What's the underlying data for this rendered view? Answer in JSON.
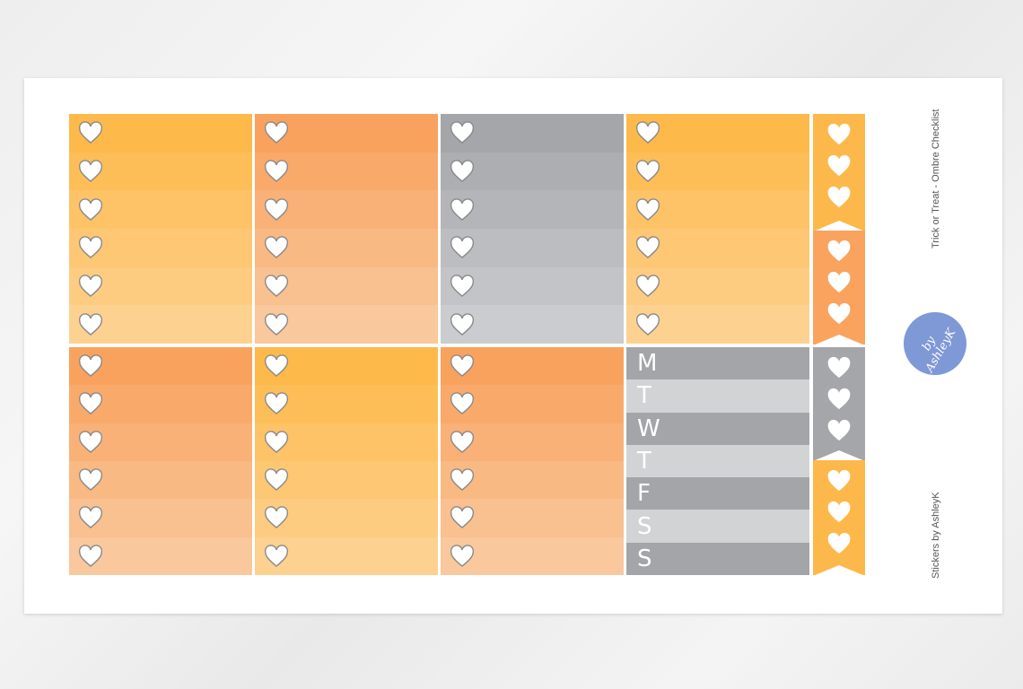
{
  "sheet": {
    "title": "Trick or Treat - Ombre Checklist",
    "credit": "Stickers by AshleyK",
    "logo_text": "by AshleyK"
  },
  "colors": {
    "yellow": [
      "#fdb94a",
      "#fdd18f"
    ],
    "orange": [
      "#f9a25e",
      "#f9c89c"
    ],
    "gray": [
      "#a5a6a9",
      "#cbcccf"
    ],
    "weekday_dark": "#a4a5a8",
    "weekday_light": "#d2d3d5",
    "flag_yellow": "#fdb84b",
    "flag_orange": "#f9a35f",
    "flag_gray": "#a5a6a9",
    "logo": "#7f98d6"
  },
  "boxes": [
    "yellow",
    "orange",
    "gray",
    "yellow",
    "orange",
    "yellow",
    "orange",
    "weekdays"
  ],
  "weekdays": [
    "M",
    "T",
    "W",
    "T",
    "F",
    "S",
    "S"
  ],
  "flags": [
    "flag_yellow",
    "flag_orange",
    "flag_gray",
    "flag_yellow"
  ],
  "icons": {
    "checkbox": "heart-icon"
  }
}
